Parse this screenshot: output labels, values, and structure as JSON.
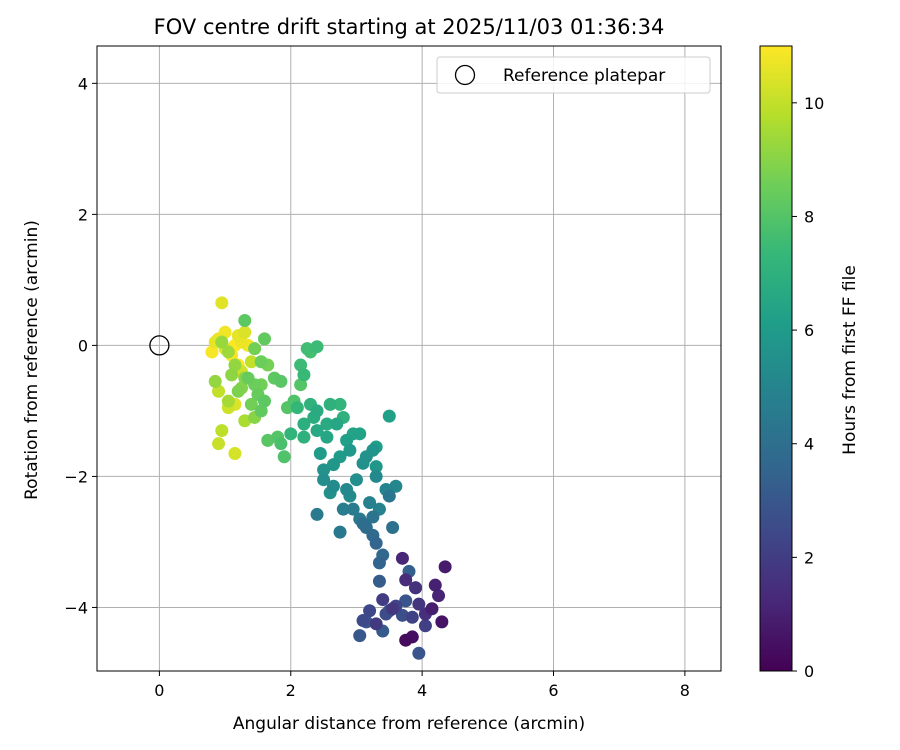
{
  "chart_data": {
    "type": "scatter",
    "title": "FOV centre drift starting at 2025/11/03 01:36:34",
    "xlabel": "Angular distance from reference (arcmin)",
    "ylabel": "Rotation from reference (arcmin)",
    "xlim": [
      -0.95,
      8.55
    ],
    "ylim": [
      -4.97,
      4.57
    ],
    "xticks": [
      0,
      2,
      4,
      6,
      8
    ],
    "xtick_labels": [
      "0",
      "2",
      "4",
      "6",
      "8"
    ],
    "yticks": [
      4,
      2,
      0,
      -2,
      -4
    ],
    "ytick_labels": [
      "4",
      "2",
      "0",
      "−2",
      "−4"
    ],
    "grid": true,
    "legend": {
      "position": "top-right",
      "entries": [
        "Reference platepar"
      ]
    },
    "reference_point": {
      "x": 0,
      "y": 0,
      "label": "Reference platepar"
    },
    "colorbar": {
      "label": "Hours from first FF file",
      "min": 0,
      "max": 11,
      "ticks": [
        0,
        2,
        4,
        6,
        8,
        10
      ],
      "tick_labels": [
        "0",
        "2",
        "4",
        "6",
        "8",
        "10"
      ],
      "colormap": "viridis",
      "stops": [
        "#440154",
        "#482878",
        "#3e4989",
        "#31688e",
        "#26828e",
        "#1f9e89",
        "#35b779",
        "#6ece58",
        "#b5de2b",
        "#fde725"
      ]
    },
    "series": [
      {
        "name": "FOV centre",
        "points": [
          [
            3.75,
            -4.5,
            0.3
          ],
          [
            3.85,
            -4.45,
            0.4
          ],
          [
            4.3,
            -4.22,
            0.6
          ],
          [
            4.35,
            -3.38,
            0.8
          ],
          [
            4.15,
            -4.02,
            0.9
          ],
          [
            4.2,
            -3.66,
            1.0
          ],
          [
            4.25,
            -3.82,
            1.1
          ],
          [
            3.7,
            -3.25,
            1.2
          ],
          [
            3.75,
            -3.58,
            1.4
          ],
          [
            4.05,
            -4.1,
            1.5
          ],
          [
            3.9,
            -3.7,
            1.6
          ],
          [
            3.95,
            -3.95,
            1.7
          ],
          [
            3.55,
            -4.02,
            1.8
          ],
          [
            3.3,
            -4.25,
            1.9
          ],
          [
            3.4,
            -3.88,
            2.0
          ],
          [
            4.05,
            -4.28,
            2.1
          ],
          [
            3.85,
            -4.15,
            2.2
          ],
          [
            3.6,
            -3.98,
            2.3
          ],
          [
            3.2,
            -4.05,
            2.4
          ],
          [
            3.1,
            -4.2,
            2.5
          ],
          [
            3.45,
            -4.1,
            2.6
          ],
          [
            3.7,
            -4.12,
            2.7
          ],
          [
            3.5,
            -4.05,
            2.8
          ],
          [
            3.95,
            -4.7,
            2.9
          ],
          [
            3.15,
            -4.22,
            3.0
          ],
          [
            3.05,
            -4.43,
            3.0
          ],
          [
            3.4,
            -4.36,
            3.1
          ],
          [
            3.35,
            -3.6,
            3.2
          ],
          [
            3.8,
            -3.45,
            3.3
          ],
          [
            3.9,
            -3.7,
            3.2
          ],
          [
            3.75,
            -3.9,
            2.9
          ],
          [
            3.35,
            -3.32,
            3.5
          ],
          [
            3.3,
            -3.02,
            3.6
          ],
          [
            3.25,
            -2.9,
            3.8
          ],
          [
            3.4,
            -3.2,
            3.7
          ],
          [
            3.15,
            -2.78,
            3.9
          ],
          [
            3.1,
            -2.72,
            4.0
          ],
          [
            3.55,
            -2.78,
            4.1
          ],
          [
            3.25,
            -2.62,
            4.2
          ],
          [
            3.5,
            -2.3,
            4.3
          ],
          [
            2.75,
            -2.85,
            4.4
          ],
          [
            3.05,
            -2.65,
            4.5
          ],
          [
            2.95,
            -2.5,
            4.6
          ],
          [
            2.4,
            -2.58,
            4.5
          ],
          [
            2.8,
            -2.5,
            4.7
          ],
          [
            3.2,
            -2.4,
            4.8
          ],
          [
            3.35,
            -2.5,
            4.9
          ],
          [
            3.45,
            -2.2,
            5.0
          ],
          [
            3.6,
            -2.15,
            5.1
          ],
          [
            3.3,
            -2.0,
            5.2
          ],
          [
            2.9,
            -2.3,
            5.3
          ],
          [
            2.85,
            -2.2,
            5.2
          ],
          [
            3.0,
            -2.05,
            5.4
          ],
          [
            2.6,
            -2.25,
            5.5
          ],
          [
            2.5,
            -1.9,
            5.6
          ],
          [
            3.1,
            -1.8,
            5.5
          ],
          [
            3.25,
            -1.6,
            5.7
          ],
          [
            3.3,
            -1.85,
            5.8
          ],
          [
            3.15,
            -1.7,
            5.6
          ],
          [
            2.9,
            -1.6,
            5.9
          ],
          [
            2.75,
            -1.7,
            6.0
          ],
          [
            2.65,
            -1.82,
            5.8
          ],
          [
            2.45,
            -1.65,
            6.0
          ],
          [
            3.3,
            -1.55,
            6.1
          ],
          [
            3.5,
            -1.08,
            6.2
          ],
          [
            3.05,
            -1.35,
            6.3
          ],
          [
            2.85,
            -1.45,
            6.2
          ],
          [
            2.95,
            -1.35,
            6.4
          ],
          [
            2.55,
            -1.4,
            6.5
          ],
          [
            2.4,
            -1.3,
            6.6
          ],
          [
            2.7,
            -1.2,
            6.5
          ],
          [
            2.55,
            -1.2,
            6.7
          ],
          [
            2.35,
            -1.1,
            6.8
          ],
          [
            2.2,
            -1.2,
            6.9
          ],
          [
            2.6,
            -0.9,
            7.0
          ],
          [
            2.4,
            -1.0,
            6.7
          ],
          [
            2.3,
            -0.9,
            7.1
          ],
          [
            2.8,
            -1.1,
            7.0
          ],
          [
            2.75,
            -0.9,
            7.2
          ],
          [
            2.1,
            -0.95,
            7.3
          ],
          [
            2.0,
            -1.35,
            7.2
          ],
          [
            2.2,
            -0.45,
            7.4
          ],
          [
            2.15,
            -0.3,
            7.5
          ],
          [
            2.25,
            -0.05,
            7.6
          ],
          [
            2.4,
            -0.02,
            7.5
          ],
          [
            2.3,
            -0.1,
            7.7
          ],
          [
            2.65,
            -2.15,
            5.3
          ],
          [
            2.5,
            -2.05,
            5.4
          ],
          [
            2.2,
            -1.4,
            7.0
          ],
          [
            1.85,
            -1.5,
            7.8
          ],
          [
            1.8,
            -1.4,
            8.0
          ],
          [
            1.9,
            -1.7,
            7.9
          ],
          [
            1.65,
            -1.45,
            8.1
          ],
          [
            1.95,
            -0.95,
            8.0
          ],
          [
            2.05,
            -0.85,
            7.9
          ],
          [
            2.15,
            -0.6,
            8.0
          ],
          [
            1.75,
            -0.5,
            8.2
          ],
          [
            1.85,
            -0.55,
            8.1
          ],
          [
            1.55,
            -1.0,
            8.3
          ],
          [
            1.6,
            -0.85,
            8.2
          ],
          [
            1.5,
            -0.75,
            8.4
          ],
          [
            1.45,
            -0.6,
            8.5
          ],
          [
            1.35,
            -0.5,
            8.4
          ],
          [
            1.3,
            0.38,
            8.2
          ],
          [
            1.6,
            0.1,
            8.3
          ],
          [
            1.55,
            -0.25,
            8.5
          ],
          [
            1.45,
            -0.05,
            8.6
          ],
          [
            1.65,
            -0.3,
            8.7
          ],
          [
            1.2,
            -0.7,
            8.8
          ],
          [
            1.25,
            -0.65,
            8.9
          ],
          [
            1.3,
            -0.5,
            9.0
          ],
          [
            1.1,
            -0.45,
            9.1
          ],
          [
            1.15,
            -0.3,
            9.2
          ],
          [
            1.05,
            -0.1,
            9.4
          ],
          [
            0.95,
            0.05,
            9.3
          ],
          [
            1.4,
            -0.9,
            8.6
          ],
          [
            1.55,
            -0.6,
            8.6
          ],
          [
            0.85,
            -0.55,
            9.2
          ],
          [
            1.05,
            -0.85,
            9.5
          ],
          [
            1.45,
            -1.1,
            9.0
          ],
          [
            1.3,
            -1.15,
            9.6
          ],
          [
            0.95,
            -1.3,
            9.9
          ],
          [
            0.9,
            -1.5,
            10.1
          ],
          [
            1.15,
            -1.65,
            10.3
          ],
          [
            0.9,
            -0.7,
            10.0
          ],
          [
            1.05,
            -0.95,
            10.2
          ],
          [
            1.15,
            -0.9,
            10.4
          ],
          [
            0.95,
            0.65,
            10.5
          ],
          [
            0.85,
            0.05,
            10.6
          ],
          [
            0.9,
            0.1,
            10.7
          ],
          [
            1.0,
            0.2,
            10.8
          ],
          [
            0.8,
            -0.1,
            10.9
          ],
          [
            1.2,
            0.15,
            10.6
          ],
          [
            1.25,
            0.05,
            10.7
          ],
          [
            1.35,
            0.0,
            10.8
          ],
          [
            1.1,
            -0.15,
            10.9
          ],
          [
            1.2,
            -0.3,
            11.0
          ],
          [
            1.0,
            -0.05,
            10.5
          ],
          [
            1.3,
            0.2,
            10.4
          ],
          [
            1.25,
            -0.4,
            10.2
          ],
          [
            1.4,
            -0.25,
            10.0
          ],
          [
            1.15,
            0.0,
            11.0
          ]
        ]
      }
    ]
  }
}
